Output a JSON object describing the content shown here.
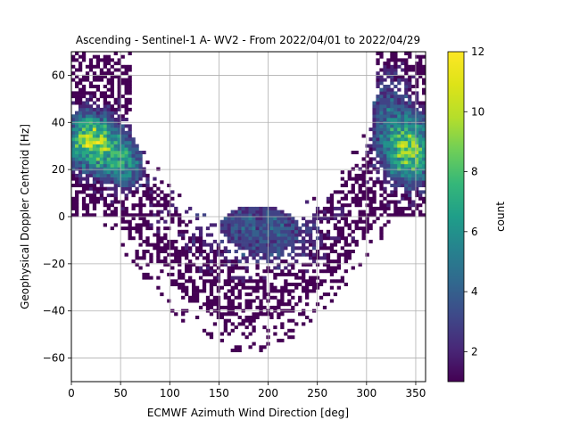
{
  "chart_data": {
    "type": "heatmap",
    "title": "Ascending - Sentinel-1 A- WV2 - From 2022/04/01 to 2022/04/29",
    "xlabel": "ECMWF Azimuth Wind Direction [deg]",
    "ylabel": "Geophysical Doppler Centroid [Hz]",
    "xlim": [
      0,
      360
    ],
    "ylim": [
      -70,
      70
    ],
    "xticks": [
      0,
      50,
      100,
      150,
      200,
      250,
      300,
      350
    ],
    "yticks": [
      -60,
      -40,
      -20,
      0,
      20,
      40,
      60
    ],
    "grid": true,
    "bin_width_x": 3.6,
    "bin_width_y": 1.4,
    "colorbar": {
      "label": "count",
      "min": 1,
      "max": 12,
      "ticks": [
        2,
        4,
        6,
        8,
        10,
        12
      ],
      "colormap": "viridis"
    },
    "clusters": [
      {
        "x": 20,
        "y": 32,
        "count": 9,
        "sx": 20,
        "sy": 9
      },
      {
        "x": 345,
        "y": 28,
        "count": 8,
        "sx": 18,
        "sy": 10
      },
      {
        "x": 55,
        "y": 22,
        "count": 5,
        "sx": 15,
        "sy": 8
      },
      {
        "x": 180,
        "y": 0,
        "count": 2,
        "sx": 60,
        "sy": 12
      },
      {
        "x": 200,
        "y": -10,
        "count": 2,
        "sx": 40,
        "sy": 10
      },
      {
        "x": 320,
        "y": 45,
        "count": 3,
        "sx": 20,
        "sy": 15
      }
    ]
  }
}
